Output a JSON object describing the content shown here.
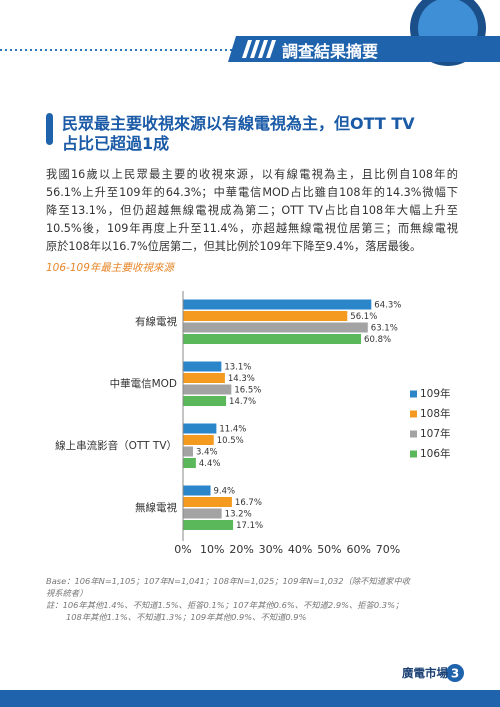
{
  "header": {
    "title": "調查結果摘要"
  },
  "heading": {
    "lines": [
      "民眾最主要收視來源以有線電視為主，但OTT TV",
      "占比已超過1成"
    ]
  },
  "body": {
    "lines": [
      "我國16歲以上民眾最主要的收視來源，以有線電視為主，且比例自108年的",
      "56.1%上升至109年的64.3%；中華電信MOD占比雖自108年的14.3%微幅下",
      "降至13.1%，但仍超越無線電視成為第二；OTT TV占比自108年大幅上升至",
      "10.5%後，109年再度上升至11.4%，亦超越無線電視位居第三；而無線電視",
      "原於108年以16.7%位居第二，但其比例於109年下降至9.4%，落居最後。"
    ]
  },
  "chart_data": {
    "type": "bar",
    "orientation": "horizontal",
    "title": "106-109年最主要收視來源",
    "categories": [
      "有線電視",
      "中華電信MOD",
      "線上串流影音（OTT TV）",
      "無線電視"
    ],
    "series": [
      {
        "name": "109年",
        "color": "#2b86c9",
        "values": [
          64.3,
          13.1,
          11.4,
          9.4
        ],
        "value_labels": [
          "64.3%",
          "13.1%",
          "11.4%",
          "9.4%"
        ]
      },
      {
        "name": "108年",
        "color": "#f39a1f",
        "values": [
          56.1,
          14.3,
          10.5,
          16.7
        ],
        "value_labels": [
          "56.1%",
          "14.3%",
          "10.5%",
          "16.7%"
        ]
      },
      {
        "name": "107年",
        "color": "#a3a3a3",
        "values": [
          63.1,
          16.5,
          3.4,
          13.2
        ],
        "value_labels": [
          "63.1%",
          "16.5%",
          "3.4%",
          "13.2%"
        ]
      },
      {
        "name": "106年",
        "color": "#5bb85a",
        "values": [
          60.8,
          14.7,
          4.4,
          17.1
        ],
        "value_labels": [
          "60.8%",
          "14.7%",
          "4.4%",
          "17.1%"
        ]
      }
    ],
    "xlim": [
      0,
      70
    ],
    "xticks": [
      {
        "value": 0,
        "label": "0%"
      },
      {
        "value": 10,
        "label": "10%"
      },
      {
        "value": 20,
        "label": "20%"
      },
      {
        "value": 30,
        "label": "30%"
      },
      {
        "value": 40,
        "label": "40%"
      },
      {
        "value": 50,
        "label": "50%"
      },
      {
        "value": 60,
        "label": "60%"
      },
      {
        "value": 70,
        "label": "70%"
      }
    ],
    "legend": "right"
  },
  "notes": {
    "lines": [
      "Base：106年N=1,105；107年N=1,041；108年N=1,025；109年N=1,032（除不知道家中收",
      "視系統者）",
      "註：106年其他1.4%、不知道1.5%、拒答0.1%；107年其他0.6%、不知道2.9%、拒答0.3%；",
      "108年其他1.1%、不知道1.3%；109年其他0.9%、不知道0.9%"
    ]
  },
  "footer": {
    "label": "廣電市場",
    "page": 3
  }
}
